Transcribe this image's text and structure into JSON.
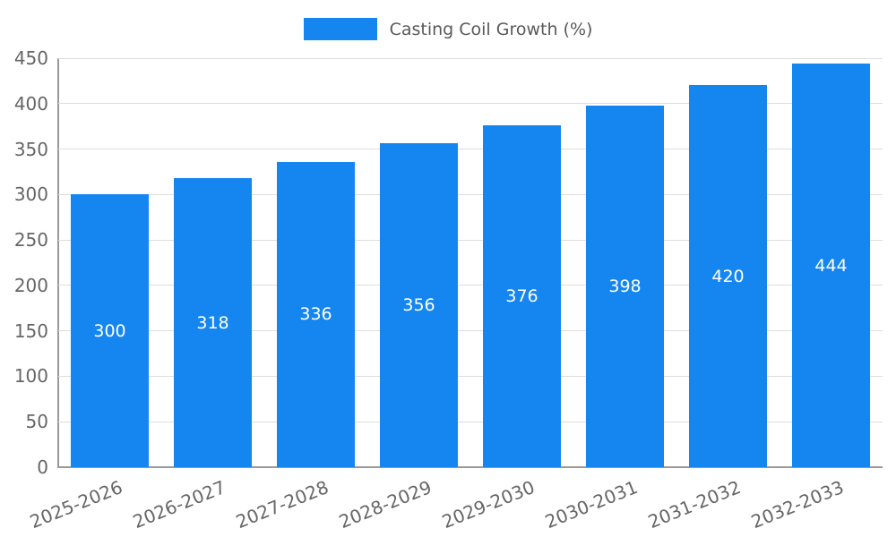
{
  "chart_data": {
    "type": "bar",
    "title": "Casting Coil Growth (%)",
    "categories": [
      "2025-2026",
      "2026-2027",
      "2027-2028",
      "2028-2029",
      "2029-2030",
      "2030-2031",
      "2031-2032",
      "2032-2033"
    ],
    "values": [
      300,
      318,
      336,
      356,
      376,
      398,
      420,
      444
    ],
    "xlabel": "",
    "ylabel": "",
    "ylim": [
      0,
      450
    ],
    "ytick_step": 50,
    "grid": true,
    "legend_position": "top-center",
    "bar_color": "#1586f0",
    "value_label_color": "#ffffff",
    "tick_text_color": "#666666",
    "gridline_color": "#dddddd",
    "axis_line_color": "#999999"
  }
}
